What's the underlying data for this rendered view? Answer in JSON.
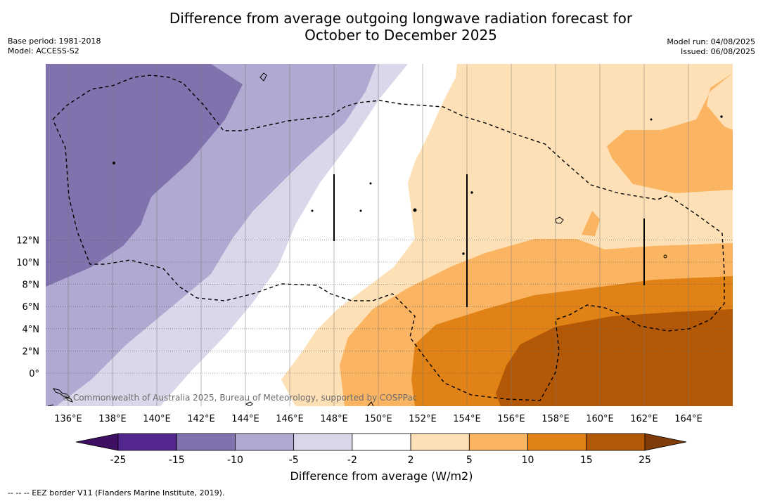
{
  "title_line1": "Difference from average outgoing longwave radiation forecast for",
  "title_line2": "October to December 2025",
  "meta": {
    "base_period": "Base period: 1981-2018",
    "model": "Model: ACCESS-S2",
    "model_run": "Model run: 04/08/2025",
    "issued": "Issued: 06/08/2025"
  },
  "map": {
    "lat_labels": [
      "12°N",
      "10°N",
      "8°N",
      "6°N",
      "4°N",
      "2°N",
      "0°"
    ],
    "lon_labels": [
      "136°E",
      "138°E",
      "140°E",
      "142°E",
      "144°E",
      "146°E",
      "148°E",
      "150°E",
      "152°E",
      "154°E",
      "156°E",
      "158°E",
      "160°E",
      "162°E",
      "164°E"
    ],
    "copyright": "© Commonwealth of Australia 2025, Bureau of Meteorology, supported by COSPPac",
    "eez_line_style": "dashed"
  },
  "legend": {
    "title": "Difference from average (W/m2)",
    "ticks": [
      "-25",
      "-15",
      "-10",
      "-5",
      "-2",
      "2",
      "5",
      "10",
      "15",
      "25"
    ],
    "colors": [
      "#3f0f63",
      "#54278f",
      "#7f72ad",
      "#b0a9d1",
      "#d8d8ea",
      "#ffffff",
      "#fde0b5",
      "#fbb562",
      "#e08215",
      "#b35806",
      "#7f3b08"
    ]
  },
  "footnote": "-- -- -- EEZ border V11 (Flanders Marine Institute, 2019)."
}
